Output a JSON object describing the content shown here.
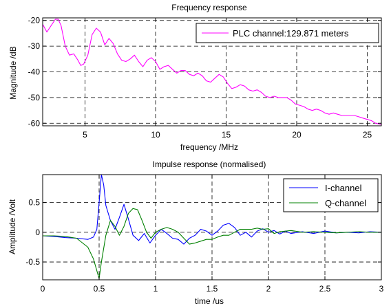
{
  "chart_data": [
    {
      "type": "line",
      "title": "Frequency response",
      "xlabel": "frequency /MHz",
      "ylabel": "Magnitude /dB",
      "xlim": [
        2,
        26
      ],
      "ylim": [
        -61,
        -19
      ],
      "xticks": [
        5,
        10,
        15,
        20,
        25
      ],
      "yticks": [
        -60,
        -50,
        -40,
        -30,
        -20
      ],
      "grid": true,
      "legend_position": "top-right",
      "series": [
        {
          "name": "PLC channel:129.871 meters",
          "color": "#ff00ff",
          "x": [
            2.0,
            2.3,
            2.6,
            2.9,
            3.1,
            3.3,
            3.6,
            3.9,
            4.2,
            4.5,
            4.7,
            4.9,
            5.2,
            5.5,
            5.8,
            6.1,
            6.4,
            6.7,
            7.0,
            7.3,
            7.6,
            7.9,
            8.2,
            8.5,
            8.8,
            9.1,
            9.4,
            9.7,
            10.0,
            10.3,
            10.6,
            10.9,
            11.2,
            11.5,
            11.8,
            12.1,
            12.4,
            12.7,
            13.0,
            13.3,
            13.6,
            13.9,
            14.2,
            14.5,
            14.8,
            15.1,
            15.4,
            15.7,
            16.0,
            16.3,
            16.6,
            16.9,
            17.2,
            17.5,
            17.8,
            18.1,
            18.4,
            18.7,
            19.0,
            19.3,
            19.6,
            19.9,
            20.2,
            20.5,
            20.8,
            21.1,
            21.4,
            21.7,
            22.0,
            22.3,
            22.6,
            22.9,
            23.2,
            23.5,
            23.8,
            24.1,
            24.4,
            24.7,
            25.0,
            25.3,
            25.6,
            26.0
          ],
          "y": [
            -21.5,
            -24.5,
            -22.0,
            -19.5,
            -19.5,
            -22.0,
            -30.0,
            -33.5,
            -33.0,
            -35.5,
            -37.5,
            -37.0,
            -33.5,
            -25.5,
            -23.0,
            -24.5,
            -29.5,
            -27.0,
            -29.0,
            -33.0,
            -35.5,
            -36.0,
            -35.0,
            -33.5,
            -36.0,
            -38.0,
            -35.5,
            -34.5,
            -36.0,
            -39.0,
            -38.0,
            -37.5,
            -39.0,
            -40.5,
            -39.5,
            -39.5,
            -41.0,
            -41.5,
            -40.5,
            -41.5,
            -43.5,
            -44.0,
            -42.5,
            -41.0,
            -42.0,
            -44.5,
            -46.5,
            -46.0,
            -45.0,
            -45.5,
            -47.0,
            -47.5,
            -47.0,
            -48.0,
            -49.5,
            -50.0,
            -49.5,
            -50.0,
            -50.0,
            -50.0,
            -51.0,
            -52.5,
            -53.0,
            -53.5,
            -54.5,
            -55.0,
            -54.5,
            -55.0,
            -56.0,
            -56.5,
            -56.0,
            -56.5,
            -57.0,
            -57.0,
            -57.0,
            -57.0,
            -57.5,
            -58.0,
            -58.5,
            -59.0,
            -60.0,
            -60.5
          ]
        }
      ]
    },
    {
      "type": "line",
      "title": "Impulse response (normalised)",
      "xlabel": "time /us",
      "ylabel": "Amplitude /Volt",
      "xlim": [
        0,
        3
      ],
      "ylim": [
        -0.8,
        0.97
      ],
      "xticks": [
        0,
        0.5,
        1,
        1.5,
        2,
        2.5,
        3
      ],
      "yticks": [
        -0.5,
        0,
        0.5
      ],
      "grid": true,
      "legend_position": "top-right",
      "series": [
        {
          "name": "I-channel",
          "color": "#0000ff",
          "x": [
            0.0,
            0.1,
            0.2,
            0.3,
            0.4,
            0.45,
            0.48,
            0.5,
            0.52,
            0.54,
            0.56,
            0.6,
            0.64,
            0.68,
            0.72,
            0.76,
            0.8,
            0.85,
            0.9,
            0.95,
            1.0,
            1.05,
            1.1,
            1.15,
            1.2,
            1.25,
            1.3,
            1.35,
            1.4,
            1.45,
            1.5,
            1.55,
            1.6,
            1.65,
            1.7,
            1.75,
            1.8,
            1.85,
            1.9,
            1.95,
            2.0,
            2.05,
            2.1,
            2.15,
            2.2,
            2.3,
            2.4,
            2.5,
            2.6,
            2.7,
            2.8,
            2.9,
            3.0
          ],
          "y": [
            -0.06,
            -0.07,
            -0.09,
            -0.1,
            -0.12,
            -0.08,
            0.05,
            0.5,
            0.97,
            0.8,
            0.45,
            0.2,
            0.05,
            0.25,
            0.47,
            0.22,
            -0.05,
            -0.14,
            -0.02,
            -0.18,
            -0.05,
            0.05,
            -0.02,
            -0.1,
            -0.12,
            -0.2,
            -0.1,
            -0.05,
            0.05,
            0.02,
            -0.05,
            0.02,
            0.12,
            0.15,
            0.08,
            -0.05,
            0.0,
            -0.08,
            0.02,
            0.06,
            0.0,
            0.03,
            -0.03,
            0.02,
            -0.02,
            0.01,
            -0.02,
            0.02,
            -0.01,
            0.0,
            -0.01,
            0.01,
            0.0
          ]
        },
        {
          "name": "Q-channel",
          "color": "#008000",
          "x": [
            0.0,
            0.1,
            0.2,
            0.3,
            0.4,
            0.45,
            0.5,
            0.52,
            0.56,
            0.6,
            0.64,
            0.68,
            0.72,
            0.76,
            0.8,
            0.84,
            0.88,
            0.92,
            0.96,
            1.0,
            1.05,
            1.1,
            1.15,
            1.2,
            1.25,
            1.3,
            1.35,
            1.4,
            1.45,
            1.5,
            1.55,
            1.6,
            1.65,
            1.7,
            1.75,
            1.8,
            1.85,
            1.9,
            1.95,
            2.0,
            2.05,
            2.1,
            2.2,
            2.3,
            2.4,
            2.5,
            2.6,
            2.7,
            2.8,
            2.9,
            3.0
          ],
          "y": [
            -0.06,
            -0.06,
            -0.07,
            -0.1,
            -0.25,
            -0.45,
            -0.78,
            -0.5,
            -0.05,
            0.2,
            0.1,
            -0.05,
            0.1,
            0.32,
            0.4,
            0.38,
            0.2,
            0.0,
            -0.1,
            0.0,
            0.05,
            0.08,
            0.05,
            0.0,
            -0.1,
            -0.2,
            -0.18,
            -0.15,
            -0.12,
            -0.12,
            -0.08,
            -0.05,
            -0.05,
            0.0,
            0.05,
            0.05,
            0.05,
            0.07,
            0.05,
            0.06,
            -0.02,
            0.01,
            0.03,
            0.0,
            0.01,
            0.0,
            -0.01,
            0.0,
            0.01,
            0.0,
            0.0
          ]
        }
      ]
    }
  ]
}
